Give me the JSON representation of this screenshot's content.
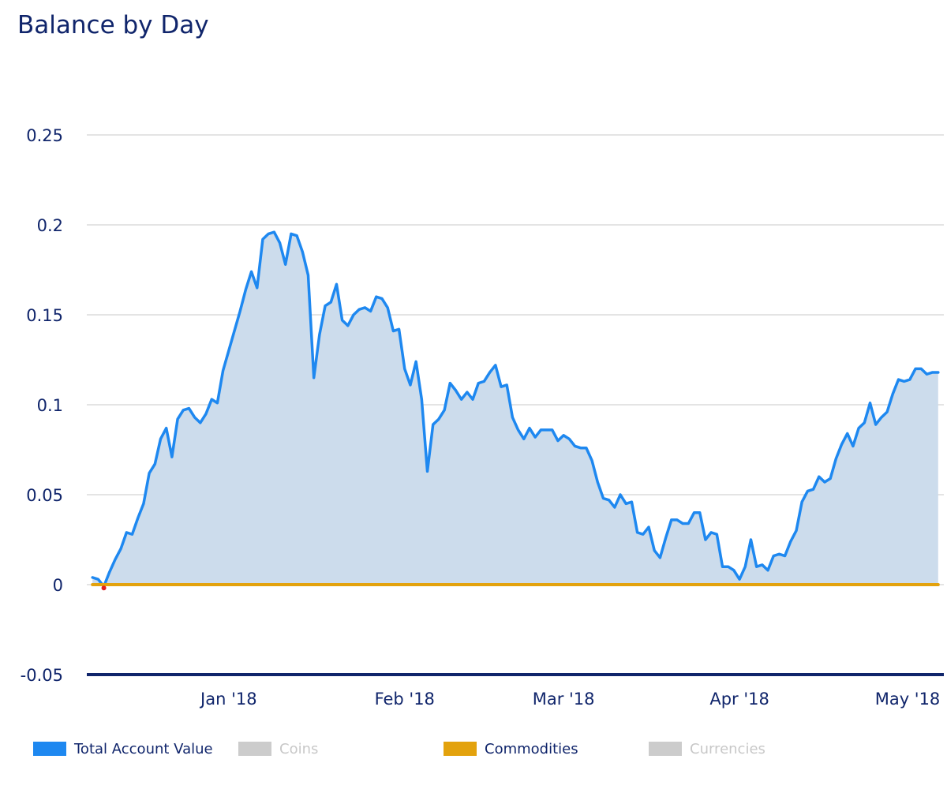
{
  "chart_data": {
    "type": "area",
    "title": "Balance by Day",
    "xlabel": "",
    "ylabel": "",
    "ylim": [
      -0.05,
      0.25
    ],
    "yticks": [
      {
        "value": 0.25,
        "label": "0.25"
      },
      {
        "value": 0.2,
        "label": "0.2"
      },
      {
        "value": 0.15,
        "label": "0.15"
      },
      {
        "value": 0.1,
        "label": "0.1"
      },
      {
        "value": 0.05,
        "label": "0.05"
      },
      {
        "value": 0,
        "label": "0"
      },
      {
        "value": -0.05,
        "label": "-0.05"
      }
    ],
    "xlim": [
      "2017-12-07",
      "2018-05-07"
    ],
    "xticks": [
      {
        "value": "2018-01-01",
        "label": "Jan '18"
      },
      {
        "value": "2018-02-01",
        "label": "Feb '18"
      },
      {
        "value": "2018-03-01",
        "label": "Mar '18"
      },
      {
        "value": "2018-04-01",
        "label": "Apr '18"
      },
      {
        "value": "2018-05-01",
        "label": "May '18"
      }
    ],
    "grid": true,
    "legend_position": "bottom",
    "series": [
      {
        "name": "Total Account Value",
        "color": "#1e88f0",
        "fill": "#ccdcec",
        "visible": true,
        "x": [
          "2017-12-08",
          "2017-12-09",
          "2017-12-10",
          "2017-12-11",
          "2017-12-12",
          "2017-12-13",
          "2017-12-14",
          "2017-12-15",
          "2017-12-16",
          "2017-12-17",
          "2017-12-18",
          "2017-12-19",
          "2017-12-20",
          "2017-12-21",
          "2017-12-22",
          "2017-12-23",
          "2017-12-24",
          "2017-12-25",
          "2017-12-26",
          "2017-12-27",
          "2017-12-28",
          "2017-12-29",
          "2017-12-30",
          "2017-12-31",
          "2018-01-01",
          "2018-01-02",
          "2018-01-03",
          "2018-01-04",
          "2018-01-05",
          "2018-01-06",
          "2018-01-07",
          "2018-01-08",
          "2018-01-09",
          "2018-01-10",
          "2018-01-11",
          "2018-01-12",
          "2018-01-13",
          "2018-01-14",
          "2018-01-15",
          "2018-01-16",
          "2018-01-17",
          "2018-01-18",
          "2018-01-19",
          "2018-01-20",
          "2018-01-21",
          "2018-01-22",
          "2018-01-23",
          "2018-01-24",
          "2018-01-25",
          "2018-01-26",
          "2018-01-27",
          "2018-01-28",
          "2018-01-29",
          "2018-01-30",
          "2018-01-31",
          "2018-02-01",
          "2018-02-02",
          "2018-02-03",
          "2018-02-04",
          "2018-02-05",
          "2018-02-06",
          "2018-02-07",
          "2018-02-08",
          "2018-02-09",
          "2018-02-10",
          "2018-02-11",
          "2018-02-12",
          "2018-02-13",
          "2018-02-14",
          "2018-02-15",
          "2018-02-16",
          "2018-02-17",
          "2018-02-18",
          "2018-02-19",
          "2018-02-20",
          "2018-02-21",
          "2018-02-22",
          "2018-02-23",
          "2018-02-24",
          "2018-02-25",
          "2018-02-26",
          "2018-02-27",
          "2018-02-28",
          "2018-03-01",
          "2018-03-02",
          "2018-03-03",
          "2018-03-04",
          "2018-03-05",
          "2018-03-06",
          "2018-03-07",
          "2018-03-08",
          "2018-03-09",
          "2018-03-10",
          "2018-03-11",
          "2018-03-12",
          "2018-03-13",
          "2018-03-14",
          "2018-03-15",
          "2018-03-16",
          "2018-03-17",
          "2018-03-18",
          "2018-03-19",
          "2018-03-20",
          "2018-03-21",
          "2018-03-22",
          "2018-03-23",
          "2018-03-24",
          "2018-03-25",
          "2018-03-26",
          "2018-03-27",
          "2018-03-28",
          "2018-03-29",
          "2018-03-30",
          "2018-03-31",
          "2018-04-01",
          "2018-04-02",
          "2018-04-03",
          "2018-04-04",
          "2018-04-05",
          "2018-04-06",
          "2018-04-07",
          "2018-04-08",
          "2018-04-09",
          "2018-04-10",
          "2018-04-11",
          "2018-04-12",
          "2018-04-13",
          "2018-04-14",
          "2018-04-15",
          "2018-04-16",
          "2018-04-17",
          "2018-04-18",
          "2018-04-19",
          "2018-04-20",
          "2018-04-21",
          "2018-04-22",
          "2018-04-23",
          "2018-04-24",
          "2018-04-25",
          "2018-04-26",
          "2018-04-27",
          "2018-04-28",
          "2018-04-29",
          "2018-04-30",
          "2018-05-01",
          "2018-05-02",
          "2018-05-03",
          "2018-05-04",
          "2018-05-05",
          "2018-05-06"
        ],
        "values": [
          0.004,
          0.003,
          -0.001,
          0.007,
          0.014,
          0.02,
          0.029,
          0.028,
          0.037,
          0.045,
          0.062,
          0.067,
          0.081,
          0.087,
          0.071,
          0.092,
          0.097,
          0.098,
          0.093,
          0.09,
          0.095,
          0.103,
          0.101,
          0.119,
          0.13,
          0.141,
          0.152,
          0.164,
          0.174,
          0.165,
          0.192,
          0.195,
          0.196,
          0.19,
          0.178,
          0.195,
          0.194,
          0.185,
          0.172,
          0.115,
          0.139,
          0.155,
          0.157,
          0.167,
          0.147,
          0.144,
          0.15,
          0.153,
          0.154,
          0.152,
          0.16,
          0.159,
          0.154,
          0.141,
          0.142,
          0.12,
          0.111,
          0.124,
          0.103,
          0.063,
          0.089,
          0.092,
          0.097,
          0.112,
          0.108,
          0.103,
          0.107,
          0.103,
          0.112,
          0.113,
          0.118,
          0.122,
          0.11,
          0.111,
          0.093,
          0.086,
          0.081,
          0.087,
          0.082,
          0.086,
          0.086,
          0.086,
          0.08,
          0.083,
          0.081,
          0.077,
          0.076,
          0.076,
          0.069,
          0.057,
          0.048,
          0.047,
          0.043,
          0.05,
          0.045,
          0.046,
          0.029,
          0.028,
          0.032,
          0.019,
          0.015,
          0.026,
          0.036,
          0.036,
          0.034,
          0.034,
          0.04,
          0.04,
          0.025,
          0.029,
          0.028,
          0.01,
          0.01,
          0.008,
          0.003,
          0.01,
          0.025,
          0.01,
          0.011,
          0.008,
          0.016,
          0.017,
          0.016,
          0.024,
          0.03,
          0.046,
          0.052,
          0.053,
          0.06,
          0.057,
          0.059,
          0.07,
          0.078,
          0.084,
          0.077,
          0.087,
          0.09,
          0.101,
          0.089,
          0.093,
          0.096,
          0.106,
          0.114,
          0.113,
          0.114,
          0.12,
          0.12,
          0.117,
          0.118,
          0.118
        ]
      },
      {
        "name": "Coins",
        "color": "#cccccc",
        "visible": false
      },
      {
        "name": "Commodities",
        "color": "#e3a20d",
        "visible": true,
        "x": [
          "2017-12-08",
          "2018-05-06"
        ],
        "values": [
          0,
          0
        ]
      },
      {
        "name": "Currencies",
        "color": "#cccccc",
        "visible": false
      }
    ],
    "annotations": [
      {
        "type": "marker",
        "x": "2017-12-10",
        "y": -0.001,
        "color": "#e02020"
      }
    ]
  }
}
